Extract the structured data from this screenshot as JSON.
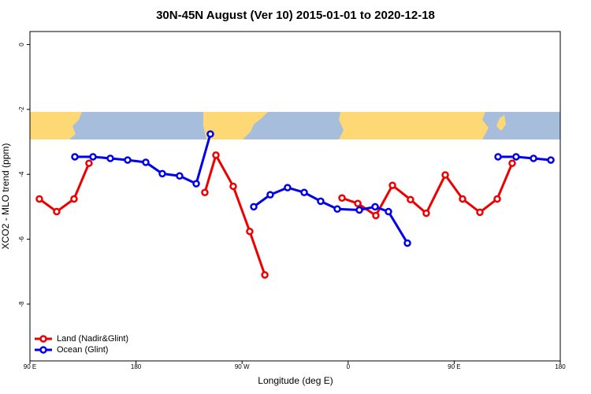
{
  "chart_data": {
    "type": "line",
    "title": "30N-45N August (Ver 10)   2015-01-01 to 2020-12-18",
    "x_label": "Longitude (deg E)",
    "y_label": "XCO2 - MLO trend (ppm)",
    "xlim": [
      90,
      540
    ],
    "xticks": [
      {
        "value": 90,
        "label": "90 E"
      },
      {
        "value": 180,
        "label": "180"
      },
      {
        "value": 270,
        "label": "90 W"
      },
      {
        "value": 360,
        "label": "0"
      },
      {
        "value": 450,
        "label": "90 E"
      },
      {
        "value": 540,
        "label": "180"
      }
    ],
    "ylim": [
      -9.75,
      0.4
    ],
    "yticks": [
      0,
      -2,
      -4,
      -6,
      -8
    ],
    "legend": "bottom-left",
    "series": [
      {
        "name": "Land (Nadir&Glint)",
        "color": "#ee0000",
        "x": [
          98.0,
          112.7,
          127.4,
          140.1,
          null,
          238.4,
          247.8,
          262.5,
          276.5,
          289.3,
          null,
          354.8,
          368.2,
          383.5,
          397.6,
          412.9,
          426.3,
          442.4,
          457.1,
          471.8,
          486.5,
          499.2
        ],
        "values": [
          -4.76,
          -5.15,
          -4.76,
          -3.66,
          null,
          -4.56,
          -3.41,
          -4.37,
          -5.76,
          -7.1,
          null,
          -4.73,
          -4.9,
          -5.27,
          -4.34,
          -4.78,
          -5.2,
          -4.02,
          -4.76,
          -5.17,
          -4.76,
          -3.66
        ]
      },
      {
        "name": "Ocean (Glint)",
        "color": "#0000ee",
        "x": [
          128.1,
          143.5,
          158.2,
          172.9,
          188.3,
          202.3,
          217.0,
          231.1,
          243.1,
          null,
          279.9,
          293.9,
          308.6,
          322.7,
          336.7,
          350.8,
          369.5,
          382.9,
          394.2,
          410.3,
          null,
          487.2,
          502.5,
          517.3,
          532.0
        ],
        "values": [
          -3.46,
          -3.46,
          -3.51,
          -3.56,
          -3.63,
          -3.98,
          -4.05,
          -4.29,
          -2.76,
          null,
          -5.0,
          -4.63,
          -4.41,
          -4.56,
          -4.83,
          -5.07,
          -5.1,
          -5.0,
          -5.15,
          -6.12,
          null,
          -3.46,
          -3.46,
          -3.51,
          -3.56
        ]
      }
    ]
  }
}
